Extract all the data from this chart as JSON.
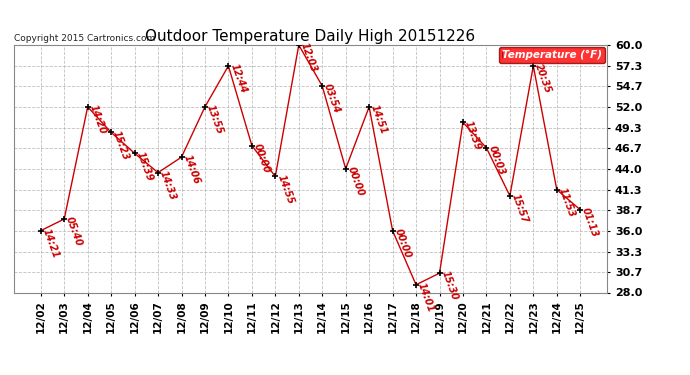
{
  "title": "Outdoor Temperature Daily High 20151226",
  "copyright": "Copyright 2015 Cartronics.com",
  "legend_label": "Temperature (°F)",
  "background_color": "#ffffff",
  "plot_bg_color": "#ffffff",
  "line_color": "#cc0000",
  "marker_color": "#000000",
  "grid_color": "#b0b0b0",
  "ylim": [
    28.0,
    60.0
  ],
  "yticks": [
    28.0,
    30.7,
    33.3,
    36.0,
    38.7,
    41.3,
    44.0,
    46.7,
    49.3,
    52.0,
    54.7,
    57.3,
    60.0
  ],
  "dates": [
    "12/02",
    "12/03",
    "12/04",
    "12/05",
    "12/06",
    "12/07",
    "12/08",
    "12/09",
    "12/10",
    "12/11",
    "12/12",
    "12/13",
    "12/14",
    "12/15",
    "12/16",
    "12/17",
    "12/18",
    "12/19",
    "12/20",
    "12/21",
    "12/22",
    "12/23",
    "12/24",
    "12/25"
  ],
  "temps": [
    36.0,
    37.5,
    52.0,
    48.7,
    46.0,
    43.5,
    45.5,
    52.0,
    57.3,
    47.0,
    43.0,
    60.0,
    54.7,
    44.0,
    52.0,
    36.0,
    29.0,
    30.5,
    50.0,
    46.7,
    40.5,
    57.3,
    41.3,
    38.7
  ],
  "time_labels": [
    "14:21",
    "05:40",
    "14:20",
    "15:23",
    "15:39",
    "14:33",
    "14:06",
    "13:55",
    "12:44",
    "00:00",
    "14:55",
    "12:03",
    "03:54",
    "00:00",
    "14:51",
    "00:00",
    "14:01",
    "15:30",
    "13:39",
    "00:03",
    "15:57",
    "20:35",
    "11:53",
    "01:13"
  ],
  "label_rotation": -70,
  "title_fontsize": 11,
  "axis_fontsize": 7.5,
  "tick_label_fontsize": 8,
  "label_fontsize": 7,
  "copyright_fontsize": 6.5
}
